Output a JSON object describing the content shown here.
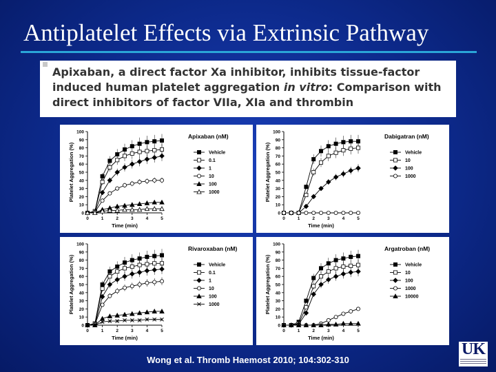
{
  "slide": {
    "title": "Antiplatelet Effects via Extrinsic Pathway",
    "subtitle_parts": [
      "Apixaban, a direct factor Xa inhibitor, inhibits tissue-factor induced human platelet aggregation ",
      "in vitro",
      ": Comparison with direct inhibitors of factor VIIa, XIa and thrombin"
    ],
    "citation": "Wong et al. Thromb Haemost 2010; 104:302-310",
    "logo_text": "UK"
  },
  "chart_data": [
    {
      "type": "line",
      "legend_title": "Apixaban (nM)",
      "xlabel": "Time (min)",
      "ylabel": "Platelet Aggregation (%)",
      "xlim": [
        0,
        5
      ],
      "ylim": [
        0,
        100
      ],
      "x_ticks": [
        0,
        1,
        2,
        3,
        4,
        5
      ],
      "y_ticks": [
        0,
        10,
        20,
        30,
        40,
        50,
        60,
        70,
        80,
        90,
        100
      ],
      "x": [
        0,
        0.5,
        1,
        1.5,
        2,
        2.5,
        3,
        3.5,
        4,
        4.5,
        5
      ],
      "series": [
        {
          "name": "Vehicle",
          "marker": "square-filled",
          "values": [
            0,
            2,
            45,
            64,
            72,
            78,
            82,
            85,
            87,
            88,
            89
          ]
        },
        {
          "name": "0.1",
          "marker": "square-open",
          "values": [
            0,
            2,
            38,
            56,
            65,
            70,
            73,
            75,
            76,
            77,
            78
          ]
        },
        {
          "name": "1",
          "marker": "diamond-filled",
          "values": [
            0,
            1,
            25,
            40,
            50,
            56,
            60,
            63,
            66,
            68,
            70
          ]
        },
        {
          "name": "10",
          "marker": "circle-open",
          "values": [
            0,
            1,
            15,
            24,
            30,
            34,
            36,
            38,
            39,
            40,
            40
          ]
        },
        {
          "name": "100",
          "marker": "triangle-filled",
          "values": [
            0,
            0,
            4,
            6,
            8,
            9,
            10,
            11,
            12,
            13,
            13
          ]
        },
        {
          "name": "1000",
          "marker": "triangle-open",
          "values": [
            0,
            0,
            2,
            3,
            3,
            4,
            4,
            4,
            5,
            5,
            5
          ]
        }
      ]
    },
    {
      "type": "line",
      "legend_title": "Dabigatran (nM)",
      "xlabel": "Time (min)",
      "ylabel": "Platelet Aggregation (%)",
      "xlim": [
        0,
        5
      ],
      "ylim": [
        0,
        100
      ],
      "x_ticks": [
        0,
        1,
        2,
        3,
        4,
        5
      ],
      "y_ticks": [
        0,
        10,
        20,
        30,
        40,
        50,
        60,
        70,
        80,
        90,
        100
      ],
      "x": [
        0,
        0.5,
        1,
        1.5,
        2,
        2.5,
        3,
        3.5,
        4,
        4.5,
        5
      ],
      "series": [
        {
          "name": "Vehicle",
          "marker": "square-filled",
          "values": [
            0,
            0,
            0,
            32,
            66,
            76,
            82,
            85,
            87,
            88,
            88
          ]
        },
        {
          "name": "10",
          "marker": "square-open",
          "values": [
            0,
            0,
            0,
            22,
            50,
            62,
            70,
            74,
            77,
            79,
            80
          ]
        },
        {
          "name": "100",
          "marker": "diamond-filled",
          "values": [
            0,
            0,
            0,
            8,
            20,
            30,
            38,
            44,
            48,
            52,
            55
          ]
        },
        {
          "name": "1000",
          "marker": "circle-open",
          "values": [
            0,
            0,
            0,
            0,
            0,
            0,
            0,
            0,
            0,
            0,
            0
          ]
        }
      ]
    },
    {
      "type": "line",
      "legend_title": "Rivaroxaban (nM)",
      "xlabel": "Time (min)",
      "ylabel": "Platelet Aggregation (%)",
      "xlim": [
        0,
        5
      ],
      "ylim": [
        0,
        100
      ],
      "x_ticks": [
        0,
        1,
        2,
        3,
        4,
        5
      ],
      "y_ticks": [
        0,
        10,
        20,
        30,
        40,
        50,
        60,
        70,
        80,
        90,
        100
      ],
      "x": [
        0,
        0.5,
        1,
        1.5,
        2,
        2.5,
        3,
        3.5,
        4,
        4.5,
        5
      ],
      "series": [
        {
          "name": "Vehicle",
          "marker": "square-filled",
          "values": [
            0,
            2,
            50,
            66,
            72,
            77,
            80,
            82,
            84,
            85,
            86
          ]
        },
        {
          "name": "0.1",
          "marker": "square-open",
          "values": [
            0,
            2,
            45,
            60,
            66,
            70,
            72,
            74,
            75,
            76,
            76
          ]
        },
        {
          "name": "1",
          "marker": "diamond-filled",
          "values": [
            0,
            1,
            35,
            50,
            56,
            60,
            63,
            65,
            67,
            68,
            69
          ]
        },
        {
          "name": "10",
          "marker": "circle-open",
          "values": [
            0,
            1,
            25,
            36,
            42,
            46,
            48,
            50,
            52,
            53,
            54
          ]
        },
        {
          "name": "100",
          "marker": "triangle-filled",
          "values": [
            0,
            0,
            8,
            11,
            12,
            13,
            14,
            15,
            16,
            17,
            17
          ]
        },
        {
          "name": "1000",
          "marker": "cross",
          "values": [
            0,
            0,
            4,
            5,
            5,
            6,
            6,
            6,
            7,
            7,
            7
          ]
        }
      ]
    },
    {
      "type": "line",
      "legend_title": "Argatroban (nM)",
      "xlabel": "Time (min)",
      "ylabel": "Platelet Aggregation (%)",
      "xlim": [
        0,
        5
      ],
      "ylim": [
        0,
        100
      ],
      "x_ticks": [
        0,
        1,
        2,
        3,
        4,
        5
      ],
      "y_ticks": [
        0,
        10,
        20,
        30,
        40,
        50,
        60,
        70,
        80,
        90,
        100
      ],
      "x": [
        0,
        0.5,
        1,
        1.5,
        2,
        2.5,
        3,
        3.5,
        4,
        4.5,
        5
      ],
      "series": [
        {
          "name": "Vehicle",
          "marker": "square-filled",
          "values": [
            0,
            0,
            4,
            30,
            58,
            70,
            76,
            80,
            82,
            84,
            85
          ]
        },
        {
          "name": "10",
          "marker": "square-open",
          "values": [
            0,
            0,
            2,
            22,
            48,
            60,
            66,
            70,
            72,
            73,
            74
          ]
        },
        {
          "name": "100",
          "marker": "diamond-filled",
          "values": [
            0,
            0,
            1,
            15,
            38,
            50,
            56,
            60,
            63,
            65,
            66
          ]
        },
        {
          "name": "1000",
          "marker": "circle-open",
          "values": [
            0,
            0,
            0,
            0,
            0,
            2,
            6,
            10,
            14,
            17,
            20
          ]
        },
        {
          "name": "10000",
          "marker": "triangle-filled",
          "values": [
            0,
            0,
            0,
            0,
            0,
            0,
            1,
            1,
            2,
            2,
            2
          ]
        }
      ]
    }
  ]
}
